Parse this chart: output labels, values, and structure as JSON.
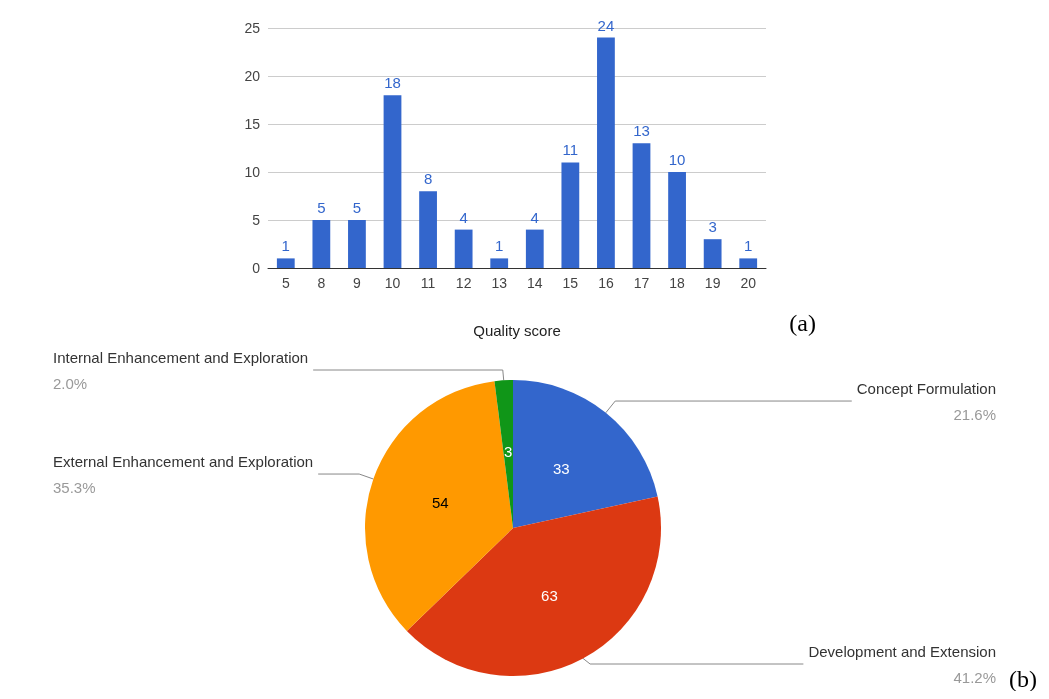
{
  "chart_data": [
    {
      "type": "bar",
      "categories": [
        "5",
        "8",
        "9",
        "10",
        "11",
        "12",
        "13",
        "14",
        "15",
        "16",
        "17",
        "18",
        "19",
        "20"
      ],
      "values": [
        1,
        5,
        5,
        18,
        8,
        4,
        1,
        4,
        11,
        24,
        13,
        10,
        3,
        1
      ],
      "color": "#3366cc",
      "ylim": [
        0,
        25
      ],
      "yticks": [
        0,
        5,
        10,
        15,
        20,
        25
      ],
      "grid": "y",
      "xlabel": "Quality score",
      "data_labels": true,
      "legend": false,
      "annotations": [
        "(a)"
      ]
    },
    {
      "type": "pie",
      "categories": [
        "Concept Formulation",
        "Development and Extension",
        "External Enhancement and Exploration",
        "Internal Enhancement and Exploration"
      ],
      "values": [
        21.6,
        41.2,
        35.3,
        2.0
      ],
      "colors": [
        "#3366cc",
        "#dc3912",
        "#ff9900",
        "#109618"
      ],
      "value_labels": [
        "21.6%",
        "41.2%",
        "35.3%",
        "2.0%"
      ],
      "legend": false,
      "annotations": [
        "(b)",
        {
          "text": "33",
          "x": "Concept Formulation"
        },
        {
          "text": "63",
          "x": "Development and Extension"
        },
        {
          "text": "54",
          "x": "External Enhancement and Exploration"
        },
        {
          "text": "3",
          "x": "Internal Enhancement and Exploration"
        }
      ]
    }
  ]
}
